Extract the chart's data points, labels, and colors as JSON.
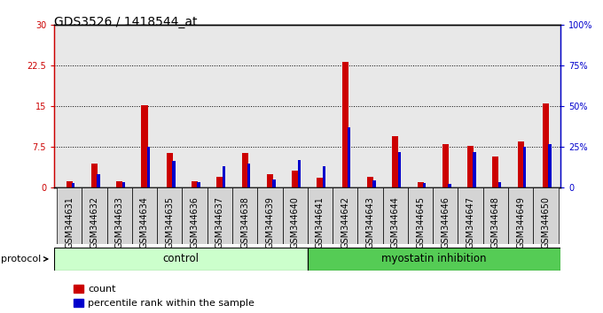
{
  "title": "GDS3526 / 1418544_at",
  "samples": [
    "GSM344631",
    "GSM344632",
    "GSM344633",
    "GSM344634",
    "GSM344635",
    "GSM344636",
    "GSM344637",
    "GSM344638",
    "GSM344639",
    "GSM344640",
    "GSM344641",
    "GSM344642",
    "GSM344643",
    "GSM344644",
    "GSM344645",
    "GSM344646",
    "GSM344647",
    "GSM344648",
    "GSM344649",
    "GSM344650"
  ],
  "counts": [
    1.2,
    4.5,
    1.2,
    15.2,
    6.5,
    1.2,
    2.0,
    6.5,
    2.5,
    3.2,
    1.8,
    23.2,
    2.0,
    9.5,
    1.0,
    8.0,
    7.8,
    5.8,
    8.5,
    15.5
  ],
  "percentile_ranks": [
    3.0,
    8.5,
    3.5,
    25.0,
    16.5,
    3.5,
    13.5,
    15.0,
    5.0,
    17.0,
    13.5,
    37.0,
    4.5,
    22.0,
    3.0,
    2.5,
    22.0,
    3.5,
    25.0,
    27.0
  ],
  "count_color": "#cc0000",
  "percentile_color": "#0000cc",
  "ylim_left": [
    0,
    30
  ],
  "ylim_right": [
    0,
    100
  ],
  "yticks_left": [
    0,
    7.5,
    15,
    22.5,
    30
  ],
  "yticks_right": [
    0,
    25,
    50,
    75,
    100
  ],
  "ytick_labels_left": [
    "0",
    "7.5",
    "15",
    "22.5",
    "30"
  ],
  "ytick_labels_right": [
    "0",
    "25%",
    "50%",
    "75%",
    "100%"
  ],
  "control_count": 10,
  "myostatin_count": 10,
  "control_label": "control",
  "myostatin_label": "myostatin inhibition",
  "protocol_label": "protocol",
  "legend_count_label": "count",
  "legend_percentile_label": "percentile rank within the sample",
  "bg_color_plot": "#e8e8e8",
  "control_bg": "#ccffcc",
  "myostatin_bg": "#55cc55",
  "red_bar_width": 0.25,
  "blue_bar_width": 0.12,
  "title_fontsize": 10,
  "tick_fontsize": 7,
  "label_fontsize": 8.5
}
